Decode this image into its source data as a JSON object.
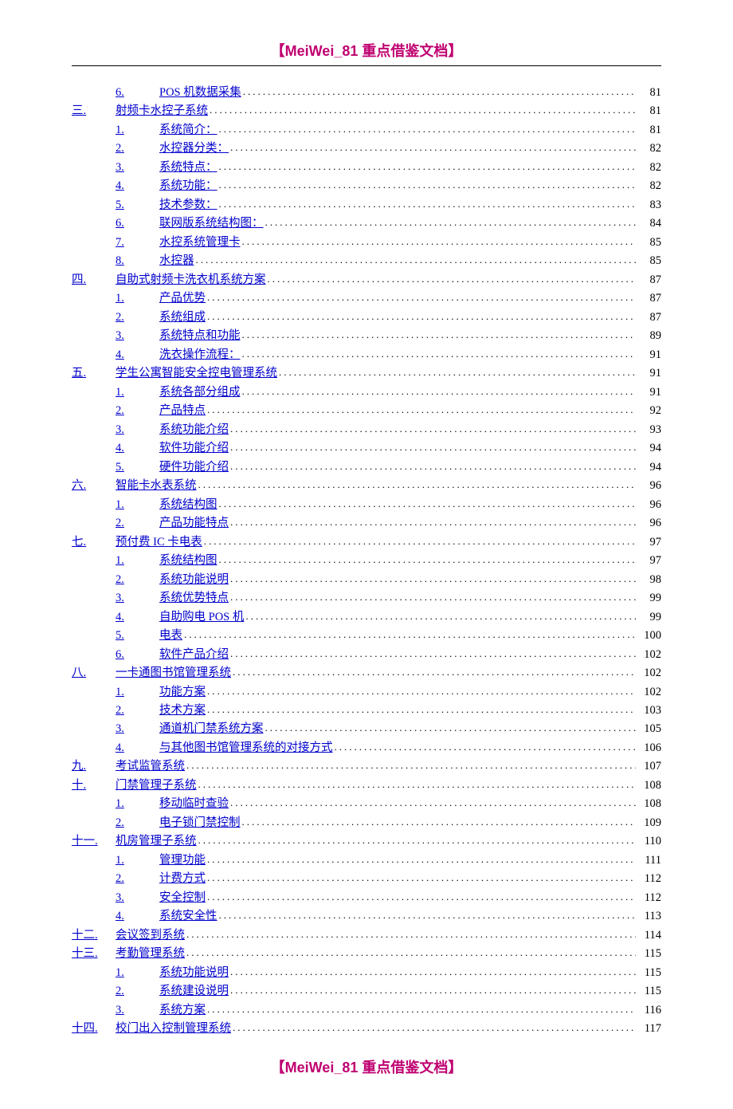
{
  "header_text": "【MeiWei_81 重点借鉴文档】",
  "footer_text": "【MeiWei_81 重点借鉴文档】",
  "entries": [
    {
      "level": 2,
      "num": "6.",
      "title": "POS 机数据采集",
      "page": "81"
    },
    {
      "level": 1,
      "num": "三.",
      "title": "射频卡水控子系统",
      "page": "81"
    },
    {
      "level": 2,
      "num": "1.",
      "title": "系统简介：",
      "page": "81"
    },
    {
      "level": 2,
      "num": "2.",
      "title": "水控器分类：",
      "page": "82"
    },
    {
      "level": 2,
      "num": "3.",
      "title": "系统特点：",
      "page": "82"
    },
    {
      "level": 2,
      "num": "4.",
      "title": "系统功能：",
      "page": "82"
    },
    {
      "level": 2,
      "num": "5.",
      "title": "技术参数：",
      "page": "83"
    },
    {
      "level": 2,
      "num": "6.",
      "title": "联网版系统结构图：",
      "page": "84"
    },
    {
      "level": 2,
      "num": "7.",
      "title": "水控系统管理卡",
      "page": "85"
    },
    {
      "level": 2,
      "num": "8.",
      "title": "水控器",
      "page": "85"
    },
    {
      "level": 1,
      "num": "四.",
      "title": "自助式射频卡洗衣机系统方案",
      "page": "87"
    },
    {
      "level": 2,
      "num": "1.",
      "title": "产品优势",
      "page": "87"
    },
    {
      "level": 2,
      "num": "2.",
      "title": "系统组成",
      "page": "87"
    },
    {
      "level": 2,
      "num": "3.",
      "title": "系统特点和功能",
      "page": "89"
    },
    {
      "level": 2,
      "num": "4.",
      "title": "洗衣操作流程：",
      "page": "91"
    },
    {
      "level": 1,
      "num": "五.",
      "title": "学生公寓智能安全控电管理系统",
      "page": "91"
    },
    {
      "level": 2,
      "num": "1.",
      "title": "系统各部分组成",
      "page": "91"
    },
    {
      "level": 2,
      "num": "2.",
      "title": "产品特点",
      "page": "92"
    },
    {
      "level": 2,
      "num": "3.",
      "title": "系统功能介绍",
      "page": "93"
    },
    {
      "level": 2,
      "num": "4.",
      "title": "软件功能介绍",
      "page": "94"
    },
    {
      "level": 2,
      "num": "5.",
      "title": "硬件功能介绍",
      "page": "94"
    },
    {
      "level": 1,
      "num": "六.",
      "title": "智能卡水表系统",
      "page": "96"
    },
    {
      "level": 2,
      "num": "1.",
      "title": "系统结构图",
      "page": "96"
    },
    {
      "level": 2,
      "num": "2.",
      "title": "产品功能特点",
      "page": "96"
    },
    {
      "level": 1,
      "num": "七.",
      "title": "预付费 IC 卡电表",
      "page": "97"
    },
    {
      "level": 2,
      "num": "1.",
      "title": "系统结构图",
      "page": "97"
    },
    {
      "level": 2,
      "num": "2.",
      "title": "系统功能说明",
      "page": "98"
    },
    {
      "level": 2,
      "num": "3.",
      "title": "系统优势特点",
      "page": "99"
    },
    {
      "level": 2,
      "num": "4.",
      "title": "自助购电 POS 机",
      "page": "99"
    },
    {
      "level": 2,
      "num": "5.",
      "title": "电表",
      "page": "100"
    },
    {
      "level": 2,
      "num": "6.",
      "title": "软件产品介绍",
      "page": "102"
    },
    {
      "level": 1,
      "num": "八.",
      "title": "一卡通图书馆管理系统",
      "page": "102"
    },
    {
      "level": 2,
      "num": "1.",
      "title": "功能方案",
      "page": "102"
    },
    {
      "level": 2,
      "num": "2.",
      "title": "技术方案",
      "page": "103"
    },
    {
      "level": 2,
      "num": "3.",
      "title": "通道机门禁系统方案",
      "page": "105"
    },
    {
      "level": 2,
      "num": "4.",
      "title": "与其他图书馆管理系统的对接方式",
      "page": "106"
    },
    {
      "level": 1,
      "num": "九.",
      "title": "考试监管系统",
      "page": "107"
    },
    {
      "level": 1,
      "num": "十.",
      "title": "门禁管理子系统",
      "page": "108"
    },
    {
      "level": 2,
      "num": "1.",
      "title": "移动临时查验",
      "page": "108"
    },
    {
      "level": 2,
      "num": "2.",
      "title": "电子锁门禁控制",
      "page": "109"
    },
    {
      "level": 1,
      "num": "十一.",
      "title": "机房管理子系统",
      "page": "110"
    },
    {
      "level": 2,
      "num": "1.",
      "title": "管理功能",
      "page": "111"
    },
    {
      "level": 2,
      "num": "2.",
      "title": "计费方式",
      "page": "112"
    },
    {
      "level": 2,
      "num": "3.",
      "title": "安全控制",
      "page": "112"
    },
    {
      "level": 2,
      "num": "4.",
      "title": "系统安全性",
      "page": "113"
    },
    {
      "level": 1,
      "num": "十二.",
      "title": "会议签到系统",
      "page": "114"
    },
    {
      "level": 1,
      "num": "十三.",
      "title": "考勤管理系统",
      "page": "115"
    },
    {
      "level": 2,
      "num": "1.",
      "title": "系统功能说明",
      "page": "115"
    },
    {
      "level": 2,
      "num": "2.",
      "title": "系统建设说明",
      "page": "115"
    },
    {
      "level": 2,
      "num": "3.",
      "title": "系统方案",
      "page": "116"
    },
    {
      "level": 1,
      "num": "十四.",
      "title": "校门出入控制管理系统",
      "page": "117"
    }
  ]
}
